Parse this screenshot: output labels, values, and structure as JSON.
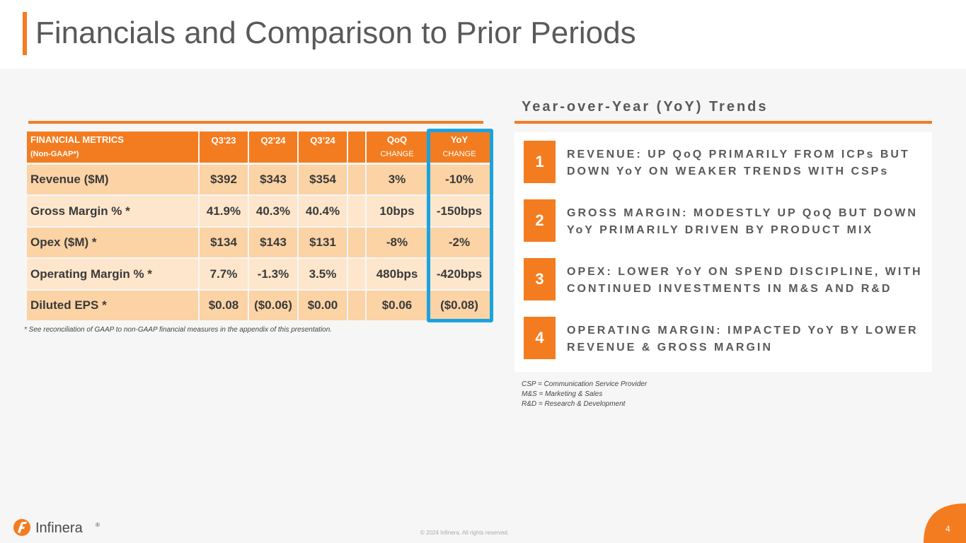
{
  "header": {
    "title": "Financials and Comparison to Prior Periods"
  },
  "table": {
    "header": {
      "metric_label": "FINANCIAL METRICS",
      "metric_sub": "(Non-GAAP*)",
      "q3_23": "Q3'23",
      "q2_24": "Q2'24",
      "q3_24": "Q3’24",
      "qoq": "QoQ",
      "qoq_sub": "CHANGE",
      "yoy": "YoY",
      "yoy_sub": "CHANGE"
    },
    "rows": [
      {
        "label": "Revenue ($M)",
        "q3_23": "$392",
        "q2_24": "$343",
        "q3_24": "$354",
        "qoq": "3%",
        "yoy": "-10%"
      },
      {
        "label": "Gross Margin % *",
        "q3_23": "41.9%",
        "q2_24": "40.3%",
        "q3_24": "40.4%",
        "qoq": "10bps",
        "yoy": "-150bps"
      },
      {
        "label": "Opex ($M) *",
        "q3_23": "$134",
        "q2_24": "$143",
        "q3_24": "$131",
        "qoq": "-8%",
        "yoy": "-2%"
      },
      {
        "label": "Operating Margin % *",
        "q3_23": "7.7%",
        "q2_24": "-1.3%",
        "q3_24": "3.5%",
        "qoq": "480bps",
        "yoy": "-420bps"
      },
      {
        "label": "Diluted EPS *",
        "q3_23": "$0.08",
        "q2_24": "($0.06)",
        "q3_24": "$0.00",
        "qoq": "$0.06",
        "yoy": "($0.08)"
      }
    ],
    "footnote": "* See reconciliation of GAAP to non-GAAP financial measures in the appendix of this presentation."
  },
  "trends": {
    "title": "Year-over-Year (YoY) Trends",
    "items": [
      {
        "num": "1",
        "text": "REVENUE: UP QoQ PRIMARILY FROM ICPs BUT DOWN YoY ON WEAKER TRENDS WITH CSPs"
      },
      {
        "num": "2",
        "text": "GROSS MARGIN: MODESTLY UP QoQ BUT DOWN YoY PRIMARILY DRIVEN BY PRODUCT MIX"
      },
      {
        "num": "3",
        "text": "OPEX: LOWER YoY ON SPEND DISCIPLINE, WITH CONTINUED INVESTMENTS IN M&S AND R&D"
      },
      {
        "num": "4",
        "text": "OPERATING MARGIN: IMPACTED YoY BY LOWER REVENUE & GROSS MARGIN"
      }
    ],
    "definitions": [
      "CSP = Communication Service Provider",
      "M&S = Marketing & Sales",
      "R&D = Research & Development"
    ]
  },
  "footer": {
    "logo_text": "Infinera",
    "logo_mark": "®",
    "copyright": "© 2024 Infinera. All rights reserved.",
    "page_number": "4"
  },
  "colors": {
    "accent": "#f47c20",
    "highlight": "#1aa3e0",
    "row_dark": "#fcd3a5",
    "row_light": "#fde6cc"
  }
}
